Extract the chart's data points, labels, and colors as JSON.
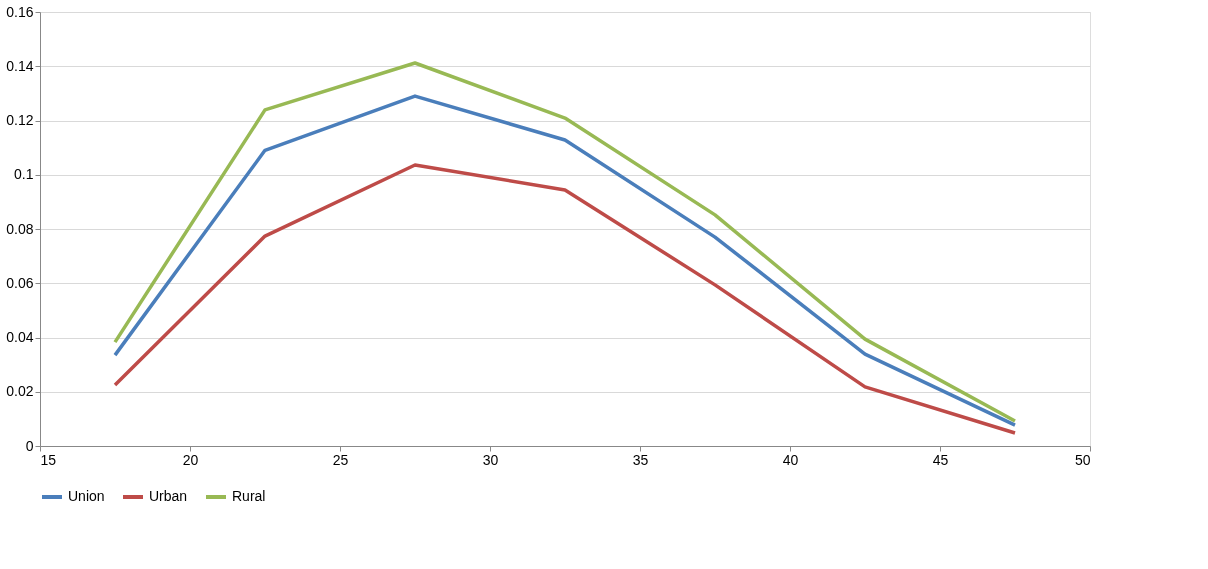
{
  "chart_data": {
    "type": "line",
    "x": [
      17.5,
      22.5,
      27.5,
      32.5,
      37.5,
      42.5,
      47.5
    ],
    "series": [
      {
        "name": "Union",
        "color": "#4a7ebb",
        "values": [
          0.0335,
          0.109,
          0.129,
          0.1128,
          0.077,
          0.0339,
          0.0077
        ]
      },
      {
        "name": "Urban",
        "color": "#be4b48",
        "values": [
          0.0225,
          0.0774,
          0.1036,
          0.0944,
          0.0594,
          0.0218,
          0.0048
        ]
      },
      {
        "name": "Rural",
        "color": "#98b954",
        "values": [
          0.0383,
          0.1239,
          0.1412,
          0.1209,
          0.0852,
          0.0394,
          0.0092
        ]
      }
    ],
    "xlim": [
      15,
      50
    ],
    "xticks": [
      15,
      20,
      25,
      30,
      35,
      40,
      45,
      50
    ],
    "ylim": [
      0,
      0.16
    ],
    "yticks": [
      0,
      0.02,
      0.04,
      0.06,
      0.08,
      0.1,
      0.12,
      0.14,
      0.16
    ],
    "grid": "y",
    "legend": "bottom",
    "marker": "none",
    "line_style": "solid"
  }
}
